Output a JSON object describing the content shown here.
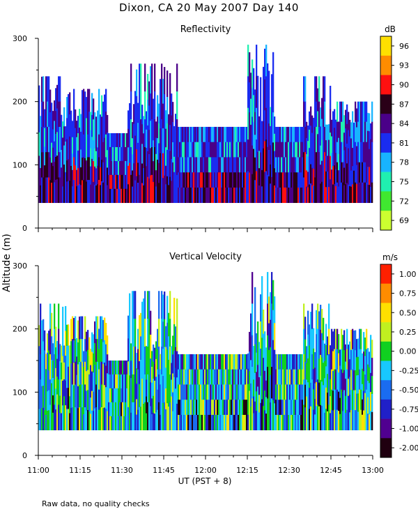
{
  "title": "Dixon, CA 20 May 2007  Day 140",
  "footer": "Raw data, no quality checks",
  "y_axis_label": "Altitude (m)",
  "x_axis_label": "UT  (PST + 8)",
  "chart_data": [
    {
      "type": "heatmap",
      "title": "Reflectivity",
      "x_ticks": [
        "11:00",
        "11:15",
        "11:30",
        "11:45",
        "12:00",
        "12:15",
        "12:30",
        "12:45",
        "13:00"
      ],
      "xlim": [
        "11:00",
        "13:00"
      ],
      "ylim": [
        0,
        300
      ],
      "y_ticks": [
        0,
        100,
        200,
        300
      ],
      "colorbar": {
        "unit": "dB",
        "ticks": [
          "96",
          "93",
          "90",
          "87",
          "84",
          "81",
          "78",
          "75",
          "72",
          "69"
        ],
        "colors": [
          "#ffe000",
          "#ff8c00",
          "#ff1010",
          "#2a0018",
          "#4a0088",
          "#1a2cf0",
          "#18b4ff",
          "#20f0b0",
          "#40e830",
          "#ccff30"
        ]
      },
      "data_floor_altitude": 40,
      "echo_top_segments": [
        {
          "from": "11:00",
          "to": "11:10",
          "top": 240
        },
        {
          "from": "11:10",
          "to": "11:25",
          "top": 220
        },
        {
          "from": "11:25",
          "to": "11:32",
          "top": 150
        },
        {
          "from": "11:32",
          "to": "11:50",
          "top": 260
        },
        {
          "from": "11:50",
          "to": "12:15",
          "top": 160
        },
        {
          "from": "12:15",
          "to": "12:25",
          "top": 290
        },
        {
          "from": "12:25",
          "to": "12:35",
          "top": 160
        },
        {
          "from": "12:35",
          "to": "12:45",
          "top": 240
        },
        {
          "from": "12:45",
          "to": "13:00",
          "top": 200
        }
      ]
    },
    {
      "type": "heatmap",
      "title": "Vertical Velocity",
      "x_ticks": [
        "11:00",
        "11:15",
        "11:30",
        "11:45",
        "12:00",
        "12:15",
        "12:30",
        "12:45",
        "13:00"
      ],
      "xlim": [
        "11:00",
        "13:00"
      ],
      "ylim": [
        0,
        300
      ],
      "y_ticks": [
        0,
        100,
        200,
        300
      ],
      "colorbar": {
        "unit": "m/s",
        "ticks": [
          "1.00",
          "0.75",
          "0.50",
          "0.25",
          "0.00",
          "-0.25",
          "-0.50",
          "-0.75",
          "-1.00",
          "-2.00"
        ],
        "colors": [
          "#ff2000",
          "#ff8c00",
          "#ffe000",
          "#c0f020",
          "#10d020",
          "#18c8ff",
          "#1a6cf0",
          "#2020c8",
          "#500090",
          "#200010"
        ]
      },
      "data_floor_altitude": 40,
      "echo_top_segments": [
        {
          "from": "11:00",
          "to": "11:10",
          "top": 240
        },
        {
          "from": "11:10",
          "to": "11:25",
          "top": 220
        },
        {
          "from": "11:25",
          "to": "11:32",
          "top": 150
        },
        {
          "from": "11:32",
          "to": "11:50",
          "top": 260
        },
        {
          "from": "11:50",
          "to": "12:15",
          "top": 160
        },
        {
          "from": "12:15",
          "to": "12:25",
          "top": 290
        },
        {
          "from": "12:25",
          "to": "12:35",
          "top": 160
        },
        {
          "from": "12:35",
          "to": "12:45",
          "top": 240
        },
        {
          "from": "12:45",
          "to": "13:00",
          "top": 200
        }
      ]
    }
  ]
}
